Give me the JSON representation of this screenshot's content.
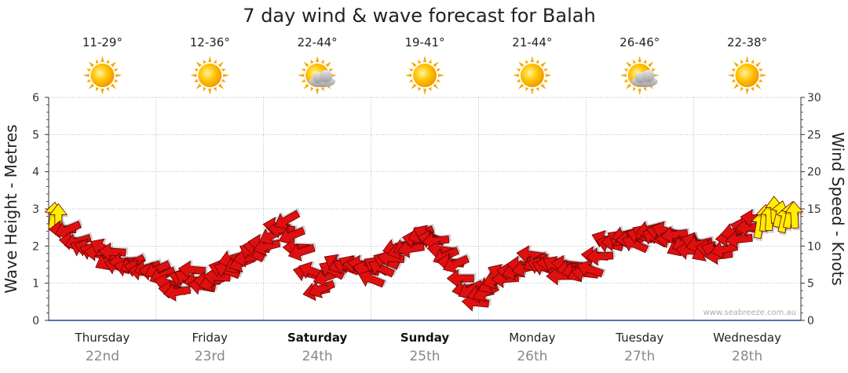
{
  "chart_data": {
    "type": "line",
    "title": "7 day wind & wave forecast for Balah",
    "ylabel_left": "Wave Height - Metres",
    "ylabel_right": "Wind Speed - Knots",
    "ylim_left": [
      0,
      6
    ],
    "ylim_right": [
      0,
      30
    ],
    "yticks_left": [
      "0",
      "1",
      "2",
      "3",
      "4",
      "5",
      "6"
    ],
    "yticks_right": [
      "0",
      "5",
      "10",
      "15",
      "20",
      "25",
      "30"
    ],
    "grid": true,
    "credit": "www.seabreeze.com.au",
    "days": [
      {
        "name": "Thursday",
        "date": "22nd",
        "temp": "11-29°",
        "icon": "sun-icon",
        "bold": false
      },
      {
        "name": "Friday",
        "date": "23rd",
        "temp": "12-36°",
        "icon": "sun-icon",
        "bold": false
      },
      {
        "name": "Saturday",
        "date": "24th",
        "temp": "22-44°",
        "icon": "sun-cloud-icon",
        "bold": true
      },
      {
        "name": "Sunday",
        "date": "25th",
        "temp": "19-41°",
        "icon": "sun-icon",
        "bold": true
      },
      {
        "name": "Monday",
        "date": "26th",
        "temp": "21-44°",
        "icon": "sun-icon",
        "bold": false
      },
      {
        "name": "Tuesday",
        "date": "27th",
        "temp": "26-46°",
        "icon": "sun-cloud-icon",
        "bold": false
      },
      {
        "name": "Wednesday",
        "date": "28th",
        "temp": "22-38°",
        "icon": "sun-icon",
        "bold": false
      }
    ],
    "series": [
      {
        "x_days": [
          0,
          0.1,
          0.25,
          0.5,
          0.75,
          1,
          1.15,
          1.3,
          1.5,
          1.7,
          2,
          2.2,
          2.5,
          2.75,
          3,
          3.25,
          3.5,
          3.7,
          4,
          4.2,
          4.5,
          4.75,
          5,
          5.2,
          5.5,
          5.75,
          6,
          6.25,
          6.5,
          6.75
        ],
        "wind_knots": [
          14,
          12,
          10,
          9,
          7,
          6,
          4,
          6,
          5,
          8,
          10,
          13,
          4,
          8,
          6,
          9,
          11,
          9,
          3,
          6,
          8,
          7,
          6,
          10,
          11,
          12,
          10,
          9,
          12,
          14
        ]
      }
    ],
    "colors": {
      "strong_wind": "#ffee00",
      "wind": "#e01010",
      "outline": "#6a0000",
      "grid": "#999999"
    }
  }
}
